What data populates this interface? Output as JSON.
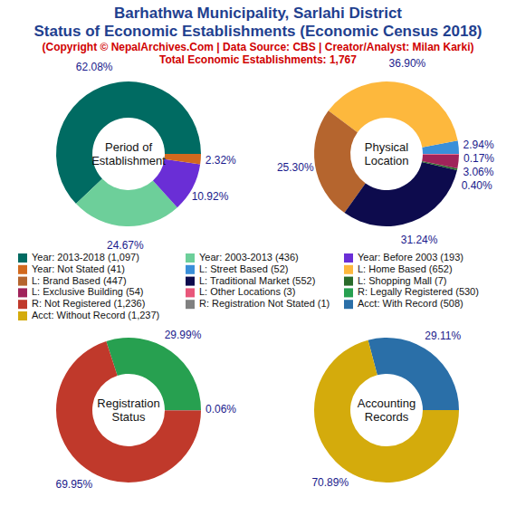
{
  "header": {
    "title": "Barhathwa Municipality, Sarlahi District",
    "subtitle": "Status of Economic Establishments (Economic Census 2018)",
    "credit": "(Copyright © NepalArchives.Com | Data Source: CBS | Creator/Analyst: Milan Karki)",
    "total": "Total Economic Establishments: 1,767"
  },
  "chart_data": [
    {
      "type": "pie",
      "title": "Period of\nEstablishment",
      "categories": [
        "Year: 2013-2018 (1,097)",
        "Year: 2003-2013 (436)",
        "Year: Before 2003 (193)",
        "Year: Not Stated (41)"
      ],
      "values": [
        62.08,
        24.67,
        10.92,
        2.32
      ],
      "value_labels": [
        "62.08%",
        "24.67%",
        "10.92%",
        "2.32%"
      ],
      "colors": [
        "#006b62",
        "#6dcf9a",
        "#6a2ed6",
        "#d2691e"
      ],
      "data_labels": true
    },
    {
      "type": "pie",
      "title": "Physical\nLocation",
      "categories": [
        "L: Street Based (52)",
        "L: Home Based (652)",
        "L: Brand Based (447)",
        "L: Traditional Market (552)",
        "L: Shopping Mall (7)",
        "L: Exclusive Building (54)",
        "L: Other Locations (3)"
      ],
      "values": [
        2.94,
        36.9,
        25.3,
        31.24,
        0.4,
        3.06,
        0.17
      ],
      "value_labels": [
        "2.94%",
        "36.90%",
        "25.30%",
        "31.24%",
        "0.40%",
        "3.06%",
        "0.17%"
      ],
      "colors": [
        "#3a8fd9",
        "#fdb83d",
        "#b5652e",
        "#0d0b4d",
        "#2a6b2a",
        "#a0235a",
        "#e8577a"
      ],
      "data_labels": true
    },
    {
      "type": "pie",
      "title": "Registration\nStatus",
      "categories": [
        "R: Legally Registered (530)",
        "R: Not Registered (1,236)",
        "R: Registration Not Stated (1)"
      ],
      "values": [
        29.99,
        69.95,
        0.06
      ],
      "value_labels": [
        "29.99%",
        "69.95%",
        "0.06%"
      ],
      "colors": [
        "#27a050",
        "#c0392b",
        "#808080"
      ],
      "data_labels": true
    },
    {
      "type": "pie",
      "title": "Accounting\nRecords",
      "categories": [
        "Acct: With Record (508)",
        "Acct: Without Record (1,237)"
      ],
      "values": [
        29.11,
        70.89
      ],
      "value_labels": [
        "29.11%",
        "70.89%"
      ],
      "colors": [
        "#2a6fa8",
        "#d4ab0c"
      ],
      "data_labels": true
    }
  ]
}
